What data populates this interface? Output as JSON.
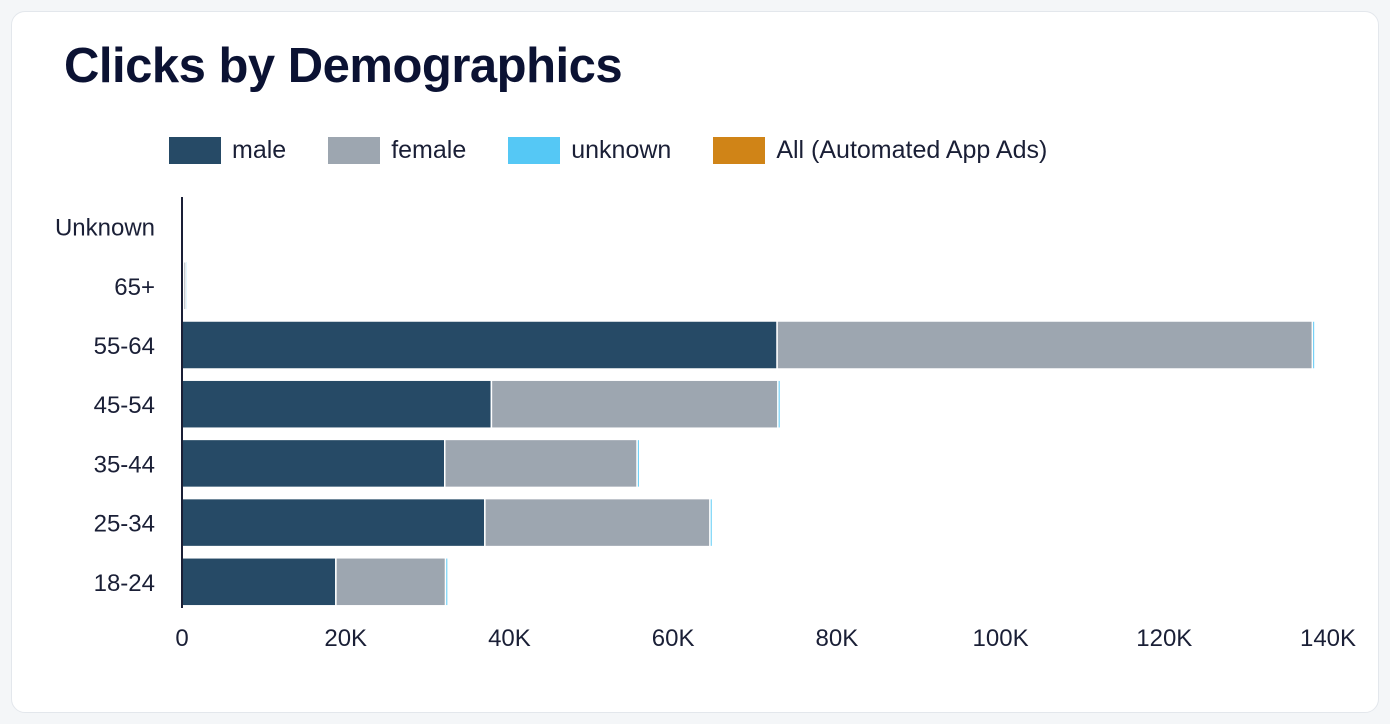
{
  "title": "Clicks by Demographics",
  "legend": [
    {
      "label": "male",
      "color": "#264a66"
    },
    {
      "label": "female",
      "color": "#9da6b0"
    },
    {
      "label": "unknown",
      "color": "#55c8f5"
    },
    {
      "label": "All (Automated App Ads)",
      "color": "#d08417"
    }
  ],
  "chart_data": {
    "type": "bar",
    "orientation": "horizontal",
    "stacked": true,
    "categories": [
      "Unknown",
      "65+",
      "55-64",
      "45-54",
      "35-44",
      "25-34",
      "18-24"
    ],
    "series": [
      {
        "name": "male",
        "color": "#264a66",
        "values": [
          0,
          200,
          72700,
          37800,
          32100,
          37000,
          18800
        ]
      },
      {
        "name": "female",
        "color": "#9da6b0",
        "values": [
          0,
          300,
          65400,
          35000,
          23500,
          27500,
          13400
        ]
      },
      {
        "name": "unknown",
        "color": "#55c8f5",
        "values": [
          0,
          200,
          300,
          300,
          300,
          300,
          300
        ]
      },
      {
        "name": "All (Automated App Ads)",
        "color": "#d08417",
        "values": [
          0,
          0,
          0,
          0,
          0,
          0,
          0
        ]
      }
    ],
    "xlim": [
      0,
      140000
    ],
    "x_ticks": [
      0,
      20000,
      40000,
      60000,
      80000,
      100000,
      120000,
      140000
    ],
    "x_tick_labels": [
      "0",
      "20K",
      "40K",
      "60K",
      "80K",
      "100K",
      "120K",
      "140K"
    ],
    "grid": false,
    "legend_position": "top"
  }
}
